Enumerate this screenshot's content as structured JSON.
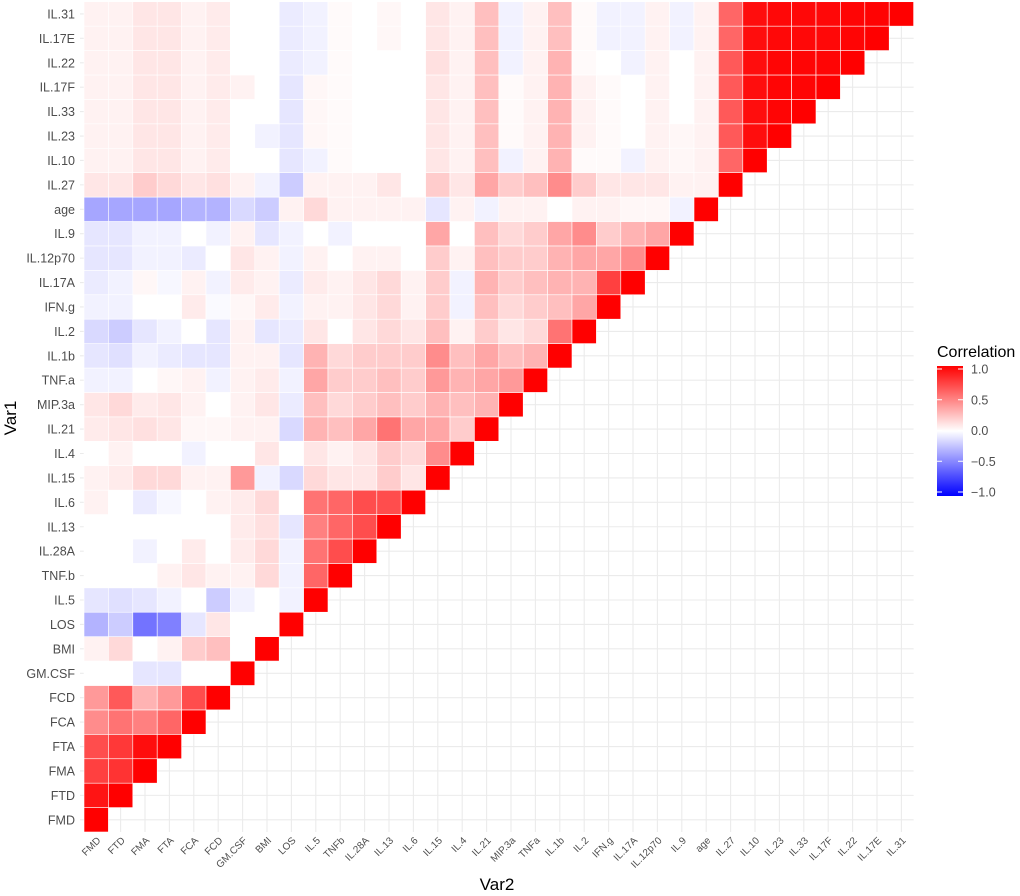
{
  "chart_data": {
    "type": "heatmap",
    "variables": [
      "FMD",
      "FTD",
      "FMA",
      "FTA",
      "FCA",
      "FCD",
      "GM.CSF",
      "BMI",
      "LOS",
      "IL.5",
      "TNFb",
      "IL.28A",
      "IL.13",
      "IL.6",
      "IL.15",
      "IL.4",
      "IL.21",
      "MIP.3a",
      "TNFa",
      "IL.1b",
      "IL.2",
      "IFN.g",
      "IL.17A",
      "IL.12p70",
      "IL.9",
      "age",
      "IL.27",
      "IL.10",
      "IL.23",
      "IL.33",
      "IL.17F",
      "IL.22",
      "IL.17E",
      "IL.31"
    ],
    "y_tick_labels": [
      "FMD",
      "FTD",
      "FMA",
      "FTA",
      "FCA",
      "FCD",
      "GM.CSF",
      "BMI",
      "LOS",
      "IL.5",
      "TNF.b",
      "IL.28A",
      "IL.13",
      "IL.6",
      "IL.15",
      "IL.4",
      "IL.21",
      "MIP.3a",
      "TNF.a",
      "IL.1b",
      "IL.2",
      "IFN.g",
      "IL.17A",
      "IL.12p70",
      "IL.9",
      "age",
      "IL.27",
      "IL.10",
      "IL.23",
      "IL.33",
      "IL.17F",
      "IL.22",
      "IL.17E",
      "IL.31"
    ],
    "xlabel": "Var2",
    "ylabel": "Var1",
    "legend": {
      "title": "Correlation",
      "ticks": [
        "1.0",
        "0.5",
        "0.0",
        "−0.5",
        "−1.0"
      ],
      "tick_values": [
        1.0,
        0.5,
        0.0,
        -0.5,
        -1.0
      ],
      "position": "right",
      "colors": {
        "high": "#ff0000",
        "mid": "#ffffff",
        "low": "#0000ff"
      }
    },
    "grid": true,
    "note": "Lower-triangular correlation matrix; cell (row i, col j) shown for j <= i; diagonal = 1.0",
    "rows": [
      [
        1
      ],
      [
        0.92,
        1
      ],
      [
        0.75,
        0.8,
        1
      ],
      [
        0.7,
        0.78,
        0.95,
        1
      ],
      [
        0.45,
        0.55,
        0.5,
        0.6,
        1
      ],
      [
        0.4,
        0.65,
        0.3,
        0.4,
        0.7,
        1
      ],
      [
        0,
        0,
        -0.1,
        -0.1,
        0,
        0,
        1
      ],
      [
        0.05,
        0.15,
        0,
        0.05,
        0.2,
        0.25,
        0,
        1
      ],
      [
        -0.3,
        -0.2,
        -0.55,
        -0.5,
        -0.1,
        0.1,
        0,
        0,
        1
      ],
      [
        -0.1,
        -0.12,
        -0.1,
        -0.05,
        0,
        -0.2,
        -0.05,
        0,
        -0.05,
        1
      ],
      [
        0,
        0,
        0,
        0.05,
        0.1,
        0.05,
        0.05,
        0.15,
        -0.05,
        0.6,
        1
      ],
      [
        0,
        0,
        -0.05,
        0,
        0.08,
        0,
        0.08,
        0.15,
        -0.05,
        0.55,
        0.7,
        1
      ],
      [
        0,
        0,
        0,
        0,
        0,
        0,
        0.08,
        0.12,
        -0.1,
        0.5,
        0.6,
        0.7,
        1
      ],
      [
        0.05,
        0,
        -0.08,
        -0.03,
        0,
        0.05,
        0.08,
        0.15,
        0,
        0.55,
        0.6,
        0.7,
        0.7,
        1
      ],
      [
        0.05,
        0.08,
        0.15,
        0.15,
        0.05,
        0.05,
        0.4,
        -0.05,
        -0.15,
        0.15,
        0.1,
        0.1,
        0.2,
        0.1,
        1
      ],
      [
        0,
        0.05,
        0,
        0,
        -0.05,
        0,
        0,
        0.1,
        0,
        0.1,
        0.05,
        0.1,
        0.2,
        0.15,
        0.45,
        1
      ],
      [
        0.08,
        0.1,
        0.12,
        0.1,
        0.03,
        0.03,
        0.05,
        0.05,
        -0.15,
        0.3,
        0.25,
        0.35,
        0.55,
        0.35,
        0.35,
        0.2,
        1
      ],
      [
        0.1,
        0.15,
        0.08,
        0.1,
        0.05,
        0,
        0.05,
        0.1,
        -0.08,
        0.25,
        0.15,
        0.2,
        0.25,
        0.2,
        0.3,
        0.25,
        0.3,
        1
      ],
      [
        -0.05,
        -0.05,
        0,
        0.03,
        0.05,
        -0.05,
        0.05,
        0.08,
        -0.05,
        0.35,
        0.2,
        0.2,
        0.25,
        0.2,
        0.4,
        0.3,
        0.35,
        0.4,
        1
      ],
      [
        -0.1,
        -0.12,
        -0.05,
        -0.08,
        -0.1,
        -0.1,
        0.05,
        0.05,
        -0.1,
        0.3,
        0.15,
        0.2,
        0.2,
        0.2,
        0.45,
        0.25,
        0.35,
        0.25,
        0.3,
        1
      ],
      [
        -0.15,
        -0.2,
        -0.1,
        -0.05,
        0,
        -0.1,
        0.05,
        -0.1,
        -0.08,
        0.1,
        0,
        0.1,
        0.15,
        0.1,
        0.25,
        0.05,
        0.2,
        0.1,
        0.15,
        0.55,
        1
      ],
      [
        -0.05,
        -0.05,
        0,
        0,
        0.08,
        -0.02,
        0.03,
        0.08,
        -0.05,
        0.05,
        0.05,
        0.1,
        0.15,
        0.05,
        0.2,
        -0.05,
        0.25,
        0.15,
        0.2,
        0.25,
        0.35,
        1
      ],
      [
        -0.08,
        -0.05,
        0.03,
        -0.03,
        0.05,
        -0.05,
        0.08,
        0.05,
        -0.08,
        0.08,
        0.05,
        0.1,
        0.15,
        0.05,
        0.2,
        -0.05,
        0.3,
        0.2,
        0.25,
        0.3,
        0.3,
        0.75,
        1
      ],
      [
        -0.1,
        -0.1,
        -0.05,
        -0.05,
        -0.08,
        0,
        0.1,
        0.05,
        -0.05,
        0.05,
        0,
        0.05,
        0.05,
        0,
        0.2,
        0.05,
        0.25,
        0.2,
        0.2,
        0.3,
        0.35,
        0.35,
        0.45,
        1
      ],
      [
        -0.1,
        -0.1,
        -0.05,
        -0.05,
        0,
        -0.05,
        0.05,
        -0.1,
        -0.05,
        0,
        -0.05,
        0,
        0,
        0,
        0.35,
        0,
        0.25,
        0.15,
        0.2,
        0.35,
        0.45,
        0.2,
        0.3,
        0.35,
        1
      ],
      [
        -0.35,
        -0.35,
        -0.35,
        -0.35,
        -0.3,
        -0.3,
        -0.15,
        -0.2,
        0.05,
        0.15,
        0.05,
        0.05,
        0.05,
        0.05,
        -0.1,
        0.05,
        -0.05,
        0.05,
        0.05,
        0,
        0.05,
        0.05,
        0.03,
        0.03,
        -0.05,
        1
      ],
      [
        0.1,
        0.1,
        0.2,
        0.15,
        0.1,
        0.12,
        0.05,
        -0.05,
        -0.2,
        0.05,
        0.05,
        0.05,
        0.1,
        0,
        0.2,
        0.1,
        0.35,
        0.2,
        0.25,
        0.45,
        0.2,
        0.1,
        0.1,
        0.1,
        0.05,
        0.05,
        1
      ],
      [
        0.05,
        0.05,
        0.1,
        0.1,
        0.05,
        0.08,
        0,
        0,
        -0.1,
        -0.05,
        0.02,
        0,
        0,
        0,
        0.1,
        0.05,
        0.25,
        -0.05,
        0.05,
        0.3,
        0.02,
        0.02,
        -0.05,
        0.05,
        0.03,
        0.05,
        0.6,
        1
      ],
      [
        0.05,
        0.05,
        0.1,
        0.1,
        0.05,
        0.08,
        0,
        -0.05,
        -0.1,
        0.03,
        0.02,
        0,
        0,
        0,
        0.1,
        0.05,
        0.25,
        0.02,
        0.05,
        0.3,
        0.05,
        0.02,
        0,
        0.05,
        0.03,
        0.05,
        0.65,
        0.95,
        1
      ],
      [
        0.05,
        0.05,
        0.1,
        0.1,
        0.05,
        0.08,
        0,
        0,
        -0.1,
        0.03,
        0.02,
        0,
        0,
        0,
        0.1,
        0.05,
        0.25,
        0.02,
        0.05,
        0.3,
        0.05,
        0.02,
        0,
        0.05,
        0,
        0.05,
        0.65,
        0.95,
        0.98,
        1
      ],
      [
        0.05,
        0.05,
        0.1,
        0.1,
        0.05,
        0.08,
        0.05,
        0,
        -0.1,
        0.03,
        0.02,
        0,
        0,
        0,
        0.1,
        0.05,
        0.25,
        0.02,
        0.05,
        0.3,
        0.05,
        0.02,
        0,
        0.05,
        0,
        0.05,
        0.65,
        0.95,
        0.98,
        0.98,
        1
      ],
      [
        0.05,
        0.05,
        0.1,
        0.1,
        0.05,
        0.08,
        0,
        0,
        -0.08,
        -0.05,
        0.02,
        0,
        0,
        0,
        0.12,
        0.05,
        0.25,
        -0.05,
        0.05,
        0.3,
        0.02,
        0,
        -0.05,
        0.05,
        0,
        0.05,
        0.65,
        0.95,
        0.98,
        0.98,
        0.98,
        1
      ],
      [
        0.05,
        0.05,
        0.1,
        0.1,
        0.05,
        0.08,
        0,
        0,
        -0.08,
        -0.05,
        0.02,
        0,
        0.03,
        0,
        0.1,
        0.05,
        0.25,
        -0.05,
        0.05,
        0.25,
        0.02,
        -0.05,
        -0.05,
        0.05,
        -0.05,
        0.05,
        0.6,
        0.95,
        0.97,
        0.97,
        0.97,
        0.98,
        1
      ],
      [
        0.05,
        0.05,
        0.1,
        0.1,
        0.05,
        0.08,
        0,
        0,
        -0.08,
        -0.05,
        0.02,
        0,
        0.03,
        0,
        0.1,
        0.05,
        0.25,
        -0.05,
        0.05,
        0.25,
        0.02,
        -0.05,
        -0.05,
        0.05,
        -0.05,
        0.05,
        0.6,
        0.95,
        0.97,
        0.97,
        0.97,
        0.98,
        0.99,
        1
      ]
    ]
  }
}
